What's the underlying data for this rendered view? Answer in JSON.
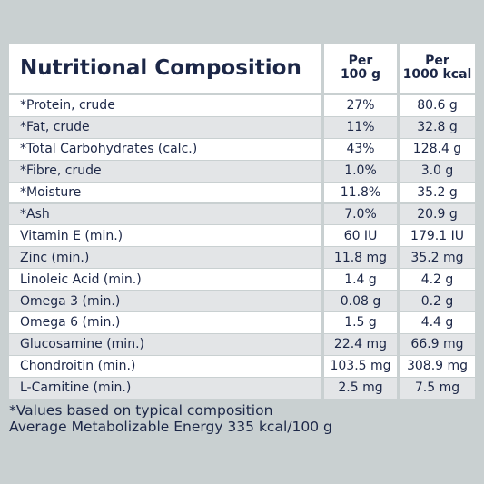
{
  "header": {
    "title": "Nutritional Composition",
    "columns": [
      {
        "line1": "Per",
        "line2": "100 g"
      },
      {
        "line1": "Per",
        "line2": "1000 kcal"
      }
    ]
  },
  "table": {
    "rows": [
      [
        "*Protein, crude",
        "27%",
        "80.6 g"
      ],
      [
        "*Fat, crude",
        "11%",
        "32.8 g"
      ],
      [
        "*Total Carbohydrates (calc.)",
        "43%",
        "128.4 g"
      ],
      [
        "*Fibre, crude",
        "1.0%",
        "3.0 g"
      ],
      [
        "*Moisture",
        "11.8%",
        "35.2 g"
      ],
      [
        "*Ash",
        "7.0%",
        "20.9 g"
      ],
      [
        "Vitamin E (min.)",
        "60 IU",
        "179.1 IU"
      ],
      [
        "Zinc (min.)",
        "11.8 mg",
        "35.2 mg"
      ],
      [
        "Linoleic Acid (min.)",
        "1.4 g",
        "4.2 g"
      ],
      [
        "Omega 3 (min.)",
        "0.08 g",
        "0.2 g"
      ],
      [
        "Omega 6 (min.)",
        "1.5 g",
        "4.4 g"
      ],
      [
        "Glucosamine (min.)",
        "22.4 mg",
        "66.9 mg"
      ],
      [
        "Chondroitin (min.)",
        "103.5 mg",
        "308.9 mg"
      ],
      [
        "L-Carnitine (min.)",
        "2.5 mg",
        "7.5 mg"
      ]
    ]
  },
  "notes": [
    "*Values based on typical composition",
    "Average Metabolizable Energy 335 kcal/100 g"
  ]
}
